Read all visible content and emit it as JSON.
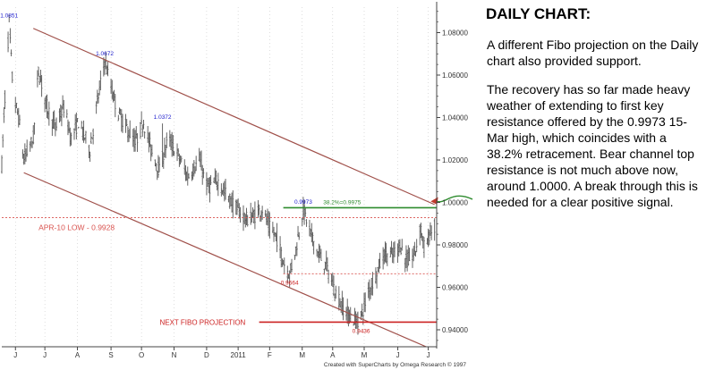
{
  "chart_data": {
    "type": "ohlc",
    "ylim": [
      0.932,
      1.092
    ],
    "xlim": [
      "2010-06-01",
      "2011-07-20"
    ],
    "y_ticks": [
      "1.08000",
      "1.06000",
      "1.04000",
      "1.02000",
      "1.00000",
      "0.98000",
      "0.96000",
      "0.94000"
    ],
    "x_ticks": [
      {
        "label": "J",
        "date": "2010-06-14"
      },
      {
        "label": "J",
        "date": "2010-07-12"
      },
      {
        "label": "A",
        "date": "2010-08-12"
      },
      {
        "label": "S",
        "date": "2010-09-13"
      },
      {
        "label": "O",
        "date": "2010-10-12"
      },
      {
        "label": "N",
        "date": "2010-11-12"
      },
      {
        "label": "D",
        "date": "2010-12-13"
      },
      {
        "label": "2011",
        "date": "2011-01-12"
      },
      {
        "label": "F",
        "date": "2011-02-11"
      },
      {
        "label": "M",
        "date": "2011-03-14"
      },
      {
        "label": "A",
        "date": "2011-04-12"
      },
      {
        "label": "M",
        "date": "2011-05-12"
      },
      {
        "label": "J",
        "date": "2011-06-13"
      },
      {
        "label": "J",
        "date": "2011-07-12"
      }
    ],
    "price_path": [
      [
        "2010-06-01",
        1.018
      ],
      [
        "2010-06-03",
        1.04
      ],
      [
        "2010-06-08",
        1.085
      ],
      [
        "2010-06-12",
        1.05
      ],
      [
        "2010-06-17",
        1.04
      ],
      [
        "2010-06-22",
        1.02
      ],
      [
        "2010-07-01",
        1.03
      ],
      [
        "2010-07-06",
        1.062
      ],
      [
        "2010-07-14",
        1.045
      ],
      [
        "2010-07-22",
        1.035
      ],
      [
        "2010-07-30",
        1.045
      ],
      [
        "2010-08-06",
        1.03
      ],
      [
        "2010-08-13",
        1.038
      ],
      [
        "2010-08-24",
        1.025
      ],
      [
        "2010-09-01",
        1.05
      ],
      [
        "2010-09-07",
        1.067
      ],
      [
        "2010-09-14",
        1.052
      ],
      [
        "2010-09-20",
        1.042
      ],
      [
        "2010-09-28",
        1.035
      ],
      [
        "2010-10-06",
        1.028
      ],
      [
        "2010-10-14",
        1.038
      ],
      [
        "2010-10-21",
        1.025
      ],
      [
        "2010-10-29",
        1.015
      ],
      [
        "2010-11-06",
        1.03
      ],
      [
        "2010-11-16",
        1.022
      ],
      [
        "2010-11-25",
        1.012
      ],
      [
        "2010-12-06",
        1.02
      ],
      [
        "2010-12-14",
        1.007
      ],
      [
        "2010-12-24",
        1.01
      ],
      [
        "2011-01-03",
        1.002
      ],
      [
        "2011-01-12",
        0.996
      ],
      [
        "2011-01-20",
        0.992
      ],
      [
        "2011-01-28",
        0.994
      ],
      [
        "2011-02-04",
        0.997
      ],
      [
        "2011-02-11",
        0.988
      ],
      [
        "2011-02-18",
        0.983
      ],
      [
        "2011-02-24",
        0.972
      ],
      [
        "2011-03-02",
        0.966
      ],
      [
        "2011-03-08",
        0.978
      ],
      [
        "2011-03-15",
        0.997
      ],
      [
        "2011-03-22",
        0.985
      ],
      [
        "2011-03-30",
        0.975
      ],
      [
        "2011-04-06",
        0.97
      ],
      [
        "2011-04-13",
        0.96
      ],
      [
        "2011-04-20",
        0.952
      ],
      [
        "2011-04-27",
        0.947
      ],
      [
        "2011-05-04",
        0.944
      ],
      [
        "2011-05-09",
        0.946
      ],
      [
        "2011-05-16",
        0.958
      ],
      [
        "2011-05-23",
        0.966
      ],
      [
        "2011-05-31",
        0.976
      ],
      [
        "2011-06-08",
        0.975
      ],
      [
        "2011-06-15",
        0.98
      ],
      [
        "2011-06-22",
        0.972
      ],
      [
        "2011-06-29",
        0.976
      ],
      [
        "2011-07-05",
        0.988
      ],
      [
        "2011-07-09",
        0.976
      ],
      [
        "2011-07-13",
        0.985
      ],
      [
        "2011-07-18",
        0.988
      ]
    ],
    "channel": {
      "upper": [
        [
          "2010-07-01",
          1.082
        ],
        [
          "2011-07-18",
          0.999
        ]
      ],
      "lower": [
        [
          "2010-06-22",
          1.014
        ],
        [
          "2011-07-10",
          0.932
        ]
      ]
    },
    "levels": [
      {
        "name": "apr10-low",
        "value": 0.9928,
        "from": "2010-06-01",
        "to": "2011-07-20",
        "color": "#d9534f",
        "style": "dotted",
        "label": "APR-10 LOW  -  0.9928"
      },
      {
        "name": "retracement-382",
        "value": 0.9975,
        "from": "2011-02-24",
        "to": "2011-07-20",
        "color": "#2e8b2e",
        "style": "solid",
        "label": "38.2%=0.9975"
      },
      {
        "name": "fibo-projection",
        "value": 0.9436,
        "from": "2011-02-01",
        "to": "2011-07-20",
        "color": "#cc2222",
        "style": "solid",
        "label": "NEXT FIBO PROJECTION"
      },
      {
        "name": "low-0.9664",
        "value": 0.9664,
        "from": "2011-02-24",
        "to": "2011-07-20",
        "color": "#d9534f",
        "style": "dotted",
        "label": ""
      }
    ],
    "price_labels": [
      {
        "text": "1.0851",
        "date": "2010-06-08",
        "value": 1.0851,
        "color": "#1a1acc"
      },
      {
        "text": "1.0672",
        "date": "2010-09-07",
        "value": 1.0672,
        "color": "#1a1acc"
      },
      {
        "text": "1.0372",
        "date": "2010-11-01",
        "value": 1.0372,
        "color": "#1a1acc"
      },
      {
        "text": "0.9973",
        "date": "2011-03-15",
        "value": 0.9973,
        "color": "#1a1acc"
      },
      {
        "text": "0.9664",
        "date": "2011-03-02",
        "value": 0.9664,
        "color": "#cc2222"
      },
      {
        "text": "0.9436",
        "date": "2011-05-04",
        "value": 0.9436,
        "color": "#cc2222"
      }
    ],
    "footer": "Created with SuperCharts by Omega Research © 1997",
    "colors": {
      "bars": "#555555",
      "channel": "#a0504a",
      "axis": "#444444",
      "arrow": "#2e8b2e"
    }
  },
  "side_panel": {
    "title": "DAILY CHART:",
    "paragraphs": [
      "A different Fibo projection on the Daily chart also provided support.",
      "The recovery has so far made heavy weather of extending to first key resistance offered by the 0.9973 15-Mar high, which coincides with a 38.2% retracement. Bear channel top resistance is not much above now, around 1.0000. A break through this is needed for a clear positive signal."
    ]
  }
}
